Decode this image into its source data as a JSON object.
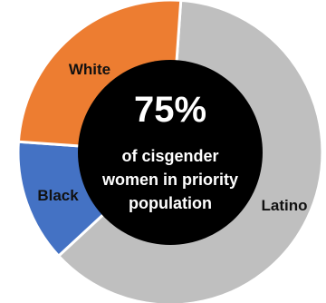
{
  "chart_data": {
    "type": "pie",
    "categories": [
      "Latino",
      "Black",
      "White"
    ],
    "values": [
      62,
      13,
      25
    ],
    "colors": [
      "#BFBFBF",
      "#4472C4",
      "#ED7D31"
    ],
    "center": {
      "value": "75%",
      "lines": [
        "of cisgender",
        "women in priority",
        "population"
      ]
    },
    "center_color": "#000000"
  }
}
